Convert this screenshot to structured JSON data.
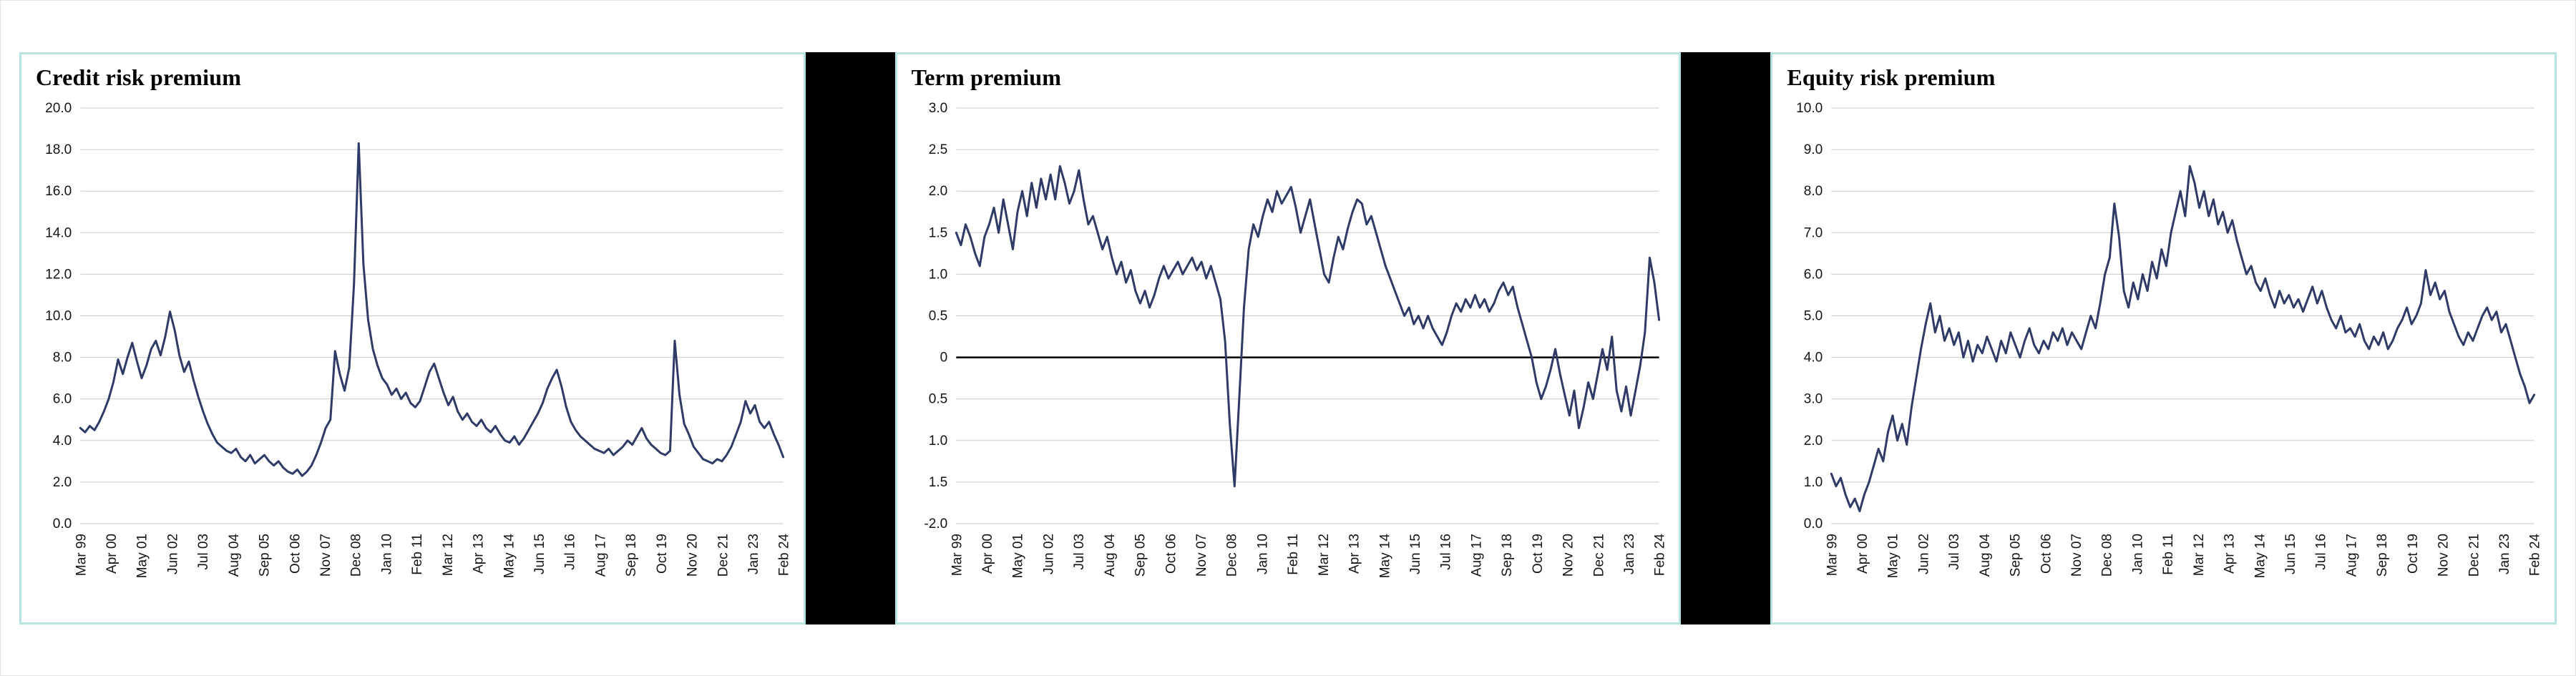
{
  "layout": {
    "background": "#ffffff",
    "panel_border_color": "#b7e4e2",
    "separator_color": "#000000",
    "grid_color": "#c9c9c9"
  },
  "chart_data": [
    {
      "type": "line",
      "title": "Credit risk premium",
      "line_color": "#2f3a66",
      "ylim": [
        0,
        20
      ],
      "zero_line": false,
      "legend": "none",
      "grid": "horizontal",
      "y_ticks": [
        {
          "label": "20.0",
          "value": 20
        },
        {
          "label": "18.0",
          "value": 18
        },
        {
          "label": "16.0",
          "value": 16
        },
        {
          "label": "14.0",
          "value": 14
        },
        {
          "label": "12.0",
          "value": 12
        },
        {
          "label": "10.0",
          "value": 10
        },
        {
          "label": "8.0",
          "value": 8
        },
        {
          "label": "6.0",
          "value": 6
        },
        {
          "label": "4.0",
          "value": 4
        },
        {
          "label": "2.0",
          "value": 2
        },
        {
          "label": "0.0",
          "value": 0
        }
      ],
      "x_tick_labels": [
        "Mar 99",
        "Apr 00",
        "May 01",
        "Jun 02",
        "Jul 03",
        "Aug 04",
        "Sep 05",
        "Oct 06",
        "Nov 07",
        "Dec 08",
        "Jan 10",
        "Feb 11",
        "Mar 12",
        "Apr 13",
        "May 14",
        "Jun 15",
        "Jul 16",
        "Aug 17",
        "Sep 18",
        "Oct 19",
        "Nov 20",
        "Dec 21",
        "Jan 23",
        "Feb 24"
      ],
      "series": [
        {
          "name": "Credit risk premium",
          "values": [
            4.6,
            4.4,
            4.7,
            4.5,
            4.9,
            5.4,
            6.0,
            6.8,
            7.9,
            7.2,
            8.0,
            8.7,
            7.8,
            7.0,
            7.6,
            8.4,
            8.8,
            8.1,
            9.0,
            10.2,
            9.3,
            8.1,
            7.3,
            7.8,
            6.9,
            6.1,
            5.4,
            4.8,
            4.3,
            3.9,
            3.7,
            3.5,
            3.4,
            3.6,
            3.2,
            3.0,
            3.3,
            2.9,
            3.1,
            3.3,
            3.0,
            2.8,
            3.0,
            2.7,
            2.5,
            2.4,
            2.6,
            2.3,
            2.5,
            2.8,
            3.3,
            3.9,
            4.6,
            5.0,
            8.3,
            7.2,
            6.4,
            7.5,
            11.5,
            18.3,
            12.5,
            9.8,
            8.4,
            7.6,
            7.0,
            6.7,
            6.2,
            6.5,
            6.0,
            6.3,
            5.8,
            5.6,
            5.9,
            6.6,
            7.3,
            7.7,
            7.0,
            6.3,
            5.7,
            6.1,
            5.4,
            5.0,
            5.3,
            4.9,
            4.7,
            5.0,
            4.6,
            4.4,
            4.7,
            4.3,
            4.0,
            3.9,
            4.2,
            3.8,
            4.1,
            4.5,
            4.9,
            5.3,
            5.8,
            6.5,
            7.0,
            7.4,
            6.6,
            5.6,
            4.9,
            4.5,
            4.2,
            4.0,
            3.8,
            3.6,
            3.5,
            3.4,
            3.6,
            3.3,
            3.5,
            3.7,
            4.0,
            3.8,
            4.2,
            4.6,
            4.1,
            3.8,
            3.6,
            3.4,
            3.3,
            3.5,
            8.8,
            6.2,
            4.8,
            4.3,
            3.7,
            3.4,
            3.1,
            3.0,
            2.9,
            3.1,
            3.0,
            3.3,
            3.7,
            4.3,
            4.9,
            5.9,
            5.3,
            5.7,
            4.9,
            4.6,
            4.9,
            4.3,
            3.8,
            3.2
          ]
        }
      ]
    },
    {
      "type": "line",
      "title": "Term premium",
      "line_color": "#2f3a66",
      "ylim": [
        -2,
        3
      ],
      "zero_line": true,
      "legend": "none",
      "grid": "horizontal",
      "y_ticks": [
        {
          "label": "3.0",
          "value": 3
        },
        {
          "label": "2.5",
          "value": 2.5
        },
        {
          "label": "2.0",
          "value": 2
        },
        {
          "label": "1.5",
          "value": 1.5
        },
        {
          "label": "1.0",
          "value": 1
        },
        {
          "label": "0.5",
          "value": 0.5
        },
        {
          "label": "0",
          "value": 0
        },
        {
          "label": "0.5",
          "value": -0.5
        },
        {
          "label": "1.0",
          "value": -1
        },
        {
          "label": "1.5",
          "value": -1.5
        },
        {
          "label": "-2.0",
          "value": -2
        }
      ],
      "x_tick_labels": [
        "Mar 99",
        "Apr 00",
        "May 01",
        "Jun 02",
        "Jul 03",
        "Aug 04",
        "Sep 05",
        "Oct 06",
        "Nov 07",
        "Dec 08",
        "Jan 10",
        "Feb 11",
        "Mar 12",
        "Apr 13",
        "May 14",
        "Jun 15",
        "Jul 16",
        "Aug 17",
        "Sep 18",
        "Oct 19",
        "Nov 20",
        "Dec 21",
        "Jan 23",
        "Feb 24"
      ],
      "series": [
        {
          "name": "Term premium",
          "values": [
            1.5,
            1.35,
            1.6,
            1.45,
            1.25,
            1.1,
            1.45,
            1.6,
            1.8,
            1.5,
            1.9,
            1.6,
            1.3,
            1.75,
            2.0,
            1.7,
            2.1,
            1.8,
            2.15,
            1.9,
            2.2,
            1.9,
            2.3,
            2.1,
            1.85,
            2.0,
            2.25,
            1.9,
            1.6,
            1.7,
            1.5,
            1.3,
            1.45,
            1.2,
            1.0,
            1.15,
            0.9,
            1.05,
            0.8,
            0.65,
            0.8,
            0.6,
            0.75,
            0.95,
            1.1,
            0.95,
            1.05,
            1.15,
            1.0,
            1.1,
            1.2,
            1.05,
            1.15,
            0.95,
            1.1,
            0.9,
            0.7,
            0.2,
            -0.8,
            -1.55,
            -0.5,
            0.6,
            1.3,
            1.6,
            1.45,
            1.7,
            1.9,
            1.75,
            2.0,
            1.85,
            1.95,
            2.05,
            1.8,
            1.5,
            1.7,
            1.9,
            1.6,
            1.3,
            1.0,
            0.9,
            1.2,
            1.45,
            1.3,
            1.55,
            1.75,
            1.9,
            1.85,
            1.6,
            1.7,
            1.5,
            1.3,
            1.1,
            0.95,
            0.8,
            0.65,
            0.5,
            0.6,
            0.4,
            0.5,
            0.35,
            0.5,
            0.35,
            0.25,
            0.15,
            0.3,
            0.5,
            0.65,
            0.55,
            0.7,
            0.6,
            0.75,
            0.6,
            0.7,
            0.55,
            0.65,
            0.8,
            0.9,
            0.75,
            0.85,
            0.6,
            0.4,
            0.2,
            0.0,
            -0.3,
            -0.5,
            -0.35,
            -0.15,
            0.1,
            -0.2,
            -0.45,
            -0.7,
            -0.4,
            -0.85,
            -0.6,
            -0.3,
            -0.5,
            -0.2,
            0.1,
            -0.15,
            0.25,
            -0.4,
            -0.65,
            -0.35,
            -0.7,
            -0.4,
            -0.1,
            0.3,
            1.2,
            0.9,
            0.45
          ]
        }
      ]
    },
    {
      "type": "line",
      "title": "Equity risk premium",
      "line_color": "#2f3a66",
      "ylim": [
        0,
        10
      ],
      "zero_line": false,
      "legend": "none",
      "grid": "horizontal",
      "y_ticks": [
        {
          "label": "10.0",
          "value": 10
        },
        {
          "label": "9.0",
          "value": 9
        },
        {
          "label": "8.0",
          "value": 8
        },
        {
          "label": "7.0",
          "value": 7
        },
        {
          "label": "6.0",
          "value": 6
        },
        {
          "label": "5.0",
          "value": 5
        },
        {
          "label": "4.0",
          "value": 4
        },
        {
          "label": "3.0",
          "value": 3
        },
        {
          "label": "2.0",
          "value": 2
        },
        {
          "label": "1.0",
          "value": 1
        },
        {
          "label": "0.0",
          "value": 0
        }
      ],
      "x_tick_labels": [
        "Mar 99",
        "Apr 00",
        "May 01",
        "Jun 02",
        "Jul 03",
        "Aug 04",
        "Sep 05",
        "Oct 06",
        "Nov 07",
        "Dec 08",
        "Jan 10",
        "Feb 11",
        "Mar 12",
        "Apr 13",
        "May 14",
        "Jun 15",
        "Jul 16",
        "Aug 17",
        "Sep 18",
        "Oct 19",
        "Nov 20",
        "Dec 21",
        "Jan 23",
        "Feb 24"
      ],
      "series": [
        {
          "name": "Equity risk premium",
          "values": [
            1.2,
            0.9,
            1.1,
            0.7,
            0.4,
            0.6,
            0.3,
            0.7,
            1.0,
            1.4,
            1.8,
            1.5,
            2.2,
            2.6,
            2.0,
            2.4,
            1.9,
            2.8,
            3.5,
            4.2,
            4.8,
            5.3,
            4.6,
            5.0,
            4.4,
            4.7,
            4.3,
            4.6,
            4.0,
            4.4,
            3.9,
            4.3,
            4.1,
            4.5,
            4.2,
            3.9,
            4.4,
            4.1,
            4.6,
            4.3,
            4.0,
            4.4,
            4.7,
            4.3,
            4.1,
            4.4,
            4.2,
            4.6,
            4.4,
            4.7,
            4.3,
            4.6,
            4.4,
            4.2,
            4.6,
            5.0,
            4.7,
            5.3,
            6.0,
            6.4,
            7.7,
            6.9,
            5.6,
            5.2,
            5.8,
            5.4,
            6.0,
            5.6,
            6.3,
            5.9,
            6.6,
            6.2,
            7.0,
            7.5,
            8.0,
            7.4,
            8.6,
            8.2,
            7.6,
            8.0,
            7.4,
            7.8,
            7.2,
            7.5,
            7.0,
            7.3,
            6.8,
            6.4,
            6.0,
            6.2,
            5.8,
            5.6,
            5.9,
            5.5,
            5.2,
            5.6,
            5.3,
            5.5,
            5.2,
            5.4,
            5.1,
            5.4,
            5.7,
            5.3,
            5.6,
            5.2,
            4.9,
            4.7,
            5.0,
            4.6,
            4.7,
            4.5,
            4.8,
            4.4,
            4.2,
            4.5,
            4.3,
            4.6,
            4.2,
            4.4,
            4.7,
            4.9,
            5.2,
            4.8,
            5.0,
            5.3,
            6.1,
            5.5,
            5.8,
            5.4,
            5.6,
            5.1,
            4.8,
            4.5,
            4.3,
            4.6,
            4.4,
            4.7,
            5.0,
            5.2,
            4.9,
            5.1,
            4.6,
            4.8,
            4.4,
            4.0,
            3.6,
            3.3,
            2.9,
            3.1
          ]
        }
      ]
    }
  ]
}
